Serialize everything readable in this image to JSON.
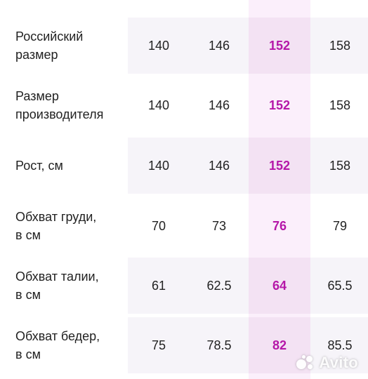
{
  "table": {
    "rows": [
      {
        "label_line1": "Российский",
        "label_line2": "размер",
        "values": [
          "140",
          "146",
          "152",
          "158"
        ]
      },
      {
        "label_line1": "Размер",
        "label_line2": "производителя",
        "values": [
          "140",
          "146",
          "152",
          "158"
        ]
      },
      {
        "label_line1": "Рост, см",
        "label_line2": "",
        "values": [
          "140",
          "146",
          "152",
          "158"
        ]
      },
      {
        "label_line1": "Обхват груди,",
        "label_line2": "в см",
        "values": [
          "70",
          "73",
          "76",
          "79"
        ]
      },
      {
        "label_line1": "Обхват талии,",
        "label_line2": "в см",
        "values": [
          "61",
          "62.5",
          "64",
          "65.5"
        ]
      },
      {
        "label_line1": "Обхват бедер,",
        "label_line2": "в см",
        "values": [
          "75",
          "78.5",
          "82",
          "85.5"
        ]
      }
    ],
    "highlight_color": "#b517a8"
  },
  "watermark": {
    "text": "Avito"
  }
}
